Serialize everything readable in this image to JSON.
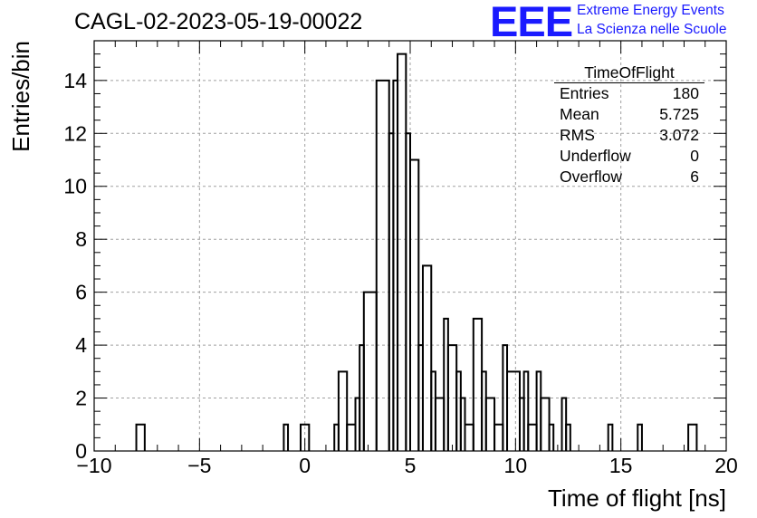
{
  "header": {
    "run_title": "CAGL-02-2023-05-19-00022",
    "logo_text": "EEE",
    "tagline_1": "Extreme Energy Events",
    "tagline_2": "La Scienza nelle Scuole",
    "brand_color": "#1a1aff"
  },
  "stats_box": {
    "title": "TimeOfFlight",
    "rows": [
      {
        "label": "Entries",
        "value": "180"
      },
      {
        "label": "Mean",
        "value": "5.725"
      },
      {
        "label": "RMS",
        "value": "3.072"
      },
      {
        "label": "Underflow",
        "value": "0"
      },
      {
        "label": "Overflow",
        "value": "6"
      }
    ]
  },
  "chart_data": {
    "type": "histogram",
    "xlabel": "Time of flight [ns]",
    "ylabel": "Entries/bin",
    "xlim": [
      -10,
      20
    ],
    "ylim": [
      0,
      15.5
    ],
    "x_ticks": [
      -10,
      -5,
      0,
      5,
      10,
      15,
      20
    ],
    "x_tick_labels": [
      "−10",
      "−5",
      "0",
      "5",
      "10",
      "15",
      "20"
    ],
    "y_ticks": [
      0,
      2,
      4,
      6,
      8,
      10,
      12,
      14
    ],
    "y_tick_labels": [
      "0",
      "2",
      "4",
      "6",
      "8",
      "10",
      "12",
      "14"
    ],
    "grid": true,
    "line_color": "#000000",
    "bins": [
      {
        "x0": -8.0,
        "x1": -7.6,
        "count": 1
      },
      {
        "x0": -1.0,
        "x1": -0.8,
        "count": 1
      },
      {
        "x0": -0.2,
        "x1": 0.2,
        "count": 1
      },
      {
        "x0": 1.4,
        "x1": 1.6,
        "count": 1
      },
      {
        "x0": 1.6,
        "x1": 2.0,
        "count": 3
      },
      {
        "x0": 2.0,
        "x1": 2.4,
        "count": 1
      },
      {
        "x0": 2.4,
        "x1": 2.6,
        "count": 2
      },
      {
        "x0": 2.6,
        "x1": 2.8,
        "count": 4
      },
      {
        "x0": 2.8,
        "x1": 3.4,
        "count": 6
      },
      {
        "x0": 3.4,
        "x1": 4.0,
        "count": 14
      },
      {
        "x0": 4.0,
        "x1": 4.2,
        "count": 12
      },
      {
        "x0": 4.2,
        "x1": 4.4,
        "count": 14
      },
      {
        "x0": 4.4,
        "x1": 4.8,
        "count": 15
      },
      {
        "x0": 4.8,
        "x1": 5.0,
        "count": 12
      },
      {
        "x0": 5.0,
        "x1": 5.4,
        "count": 11
      },
      {
        "x0": 5.4,
        "x1": 5.6,
        "count": 4
      },
      {
        "x0": 5.6,
        "x1": 6.0,
        "count": 7
      },
      {
        "x0": 6.0,
        "x1": 6.2,
        "count": 3
      },
      {
        "x0": 6.2,
        "x1": 6.6,
        "count": 2
      },
      {
        "x0": 6.6,
        "x1": 6.8,
        "count": 5
      },
      {
        "x0": 6.8,
        "x1": 7.2,
        "count": 4
      },
      {
        "x0": 7.2,
        "x1": 7.4,
        "count": 3
      },
      {
        "x0": 7.4,
        "x1": 7.6,
        "count": 2
      },
      {
        "x0": 7.6,
        "x1": 8.0,
        "count": 1
      },
      {
        "x0": 8.0,
        "x1": 8.4,
        "count": 5
      },
      {
        "x0": 8.4,
        "x1": 8.6,
        "count": 3
      },
      {
        "x0": 8.6,
        "x1": 9.0,
        "count": 2
      },
      {
        "x0": 9.0,
        "x1": 9.4,
        "count": 1
      },
      {
        "x0": 9.4,
        "x1": 9.6,
        "count": 4
      },
      {
        "x0": 9.6,
        "x1": 10.2,
        "count": 3
      },
      {
        "x0": 10.2,
        "x1": 10.4,
        "count": 2
      },
      {
        "x0": 10.4,
        "x1": 10.6,
        "count": 3
      },
      {
        "x0": 10.6,
        "x1": 11.0,
        "count": 1
      },
      {
        "x0": 11.0,
        "x1": 11.2,
        "count": 3
      },
      {
        "x0": 11.2,
        "x1": 11.6,
        "count": 2
      },
      {
        "x0": 11.6,
        "x1": 11.8,
        "count": 1
      },
      {
        "x0": 12.2,
        "x1": 12.4,
        "count": 2
      },
      {
        "x0": 12.4,
        "x1": 12.6,
        "count": 1
      },
      {
        "x0": 14.4,
        "x1": 14.6,
        "count": 1
      },
      {
        "x0": 15.8,
        "x1": 16.0,
        "count": 1
      },
      {
        "x0": 18.2,
        "x1": 18.6,
        "count": 1
      }
    ]
  }
}
